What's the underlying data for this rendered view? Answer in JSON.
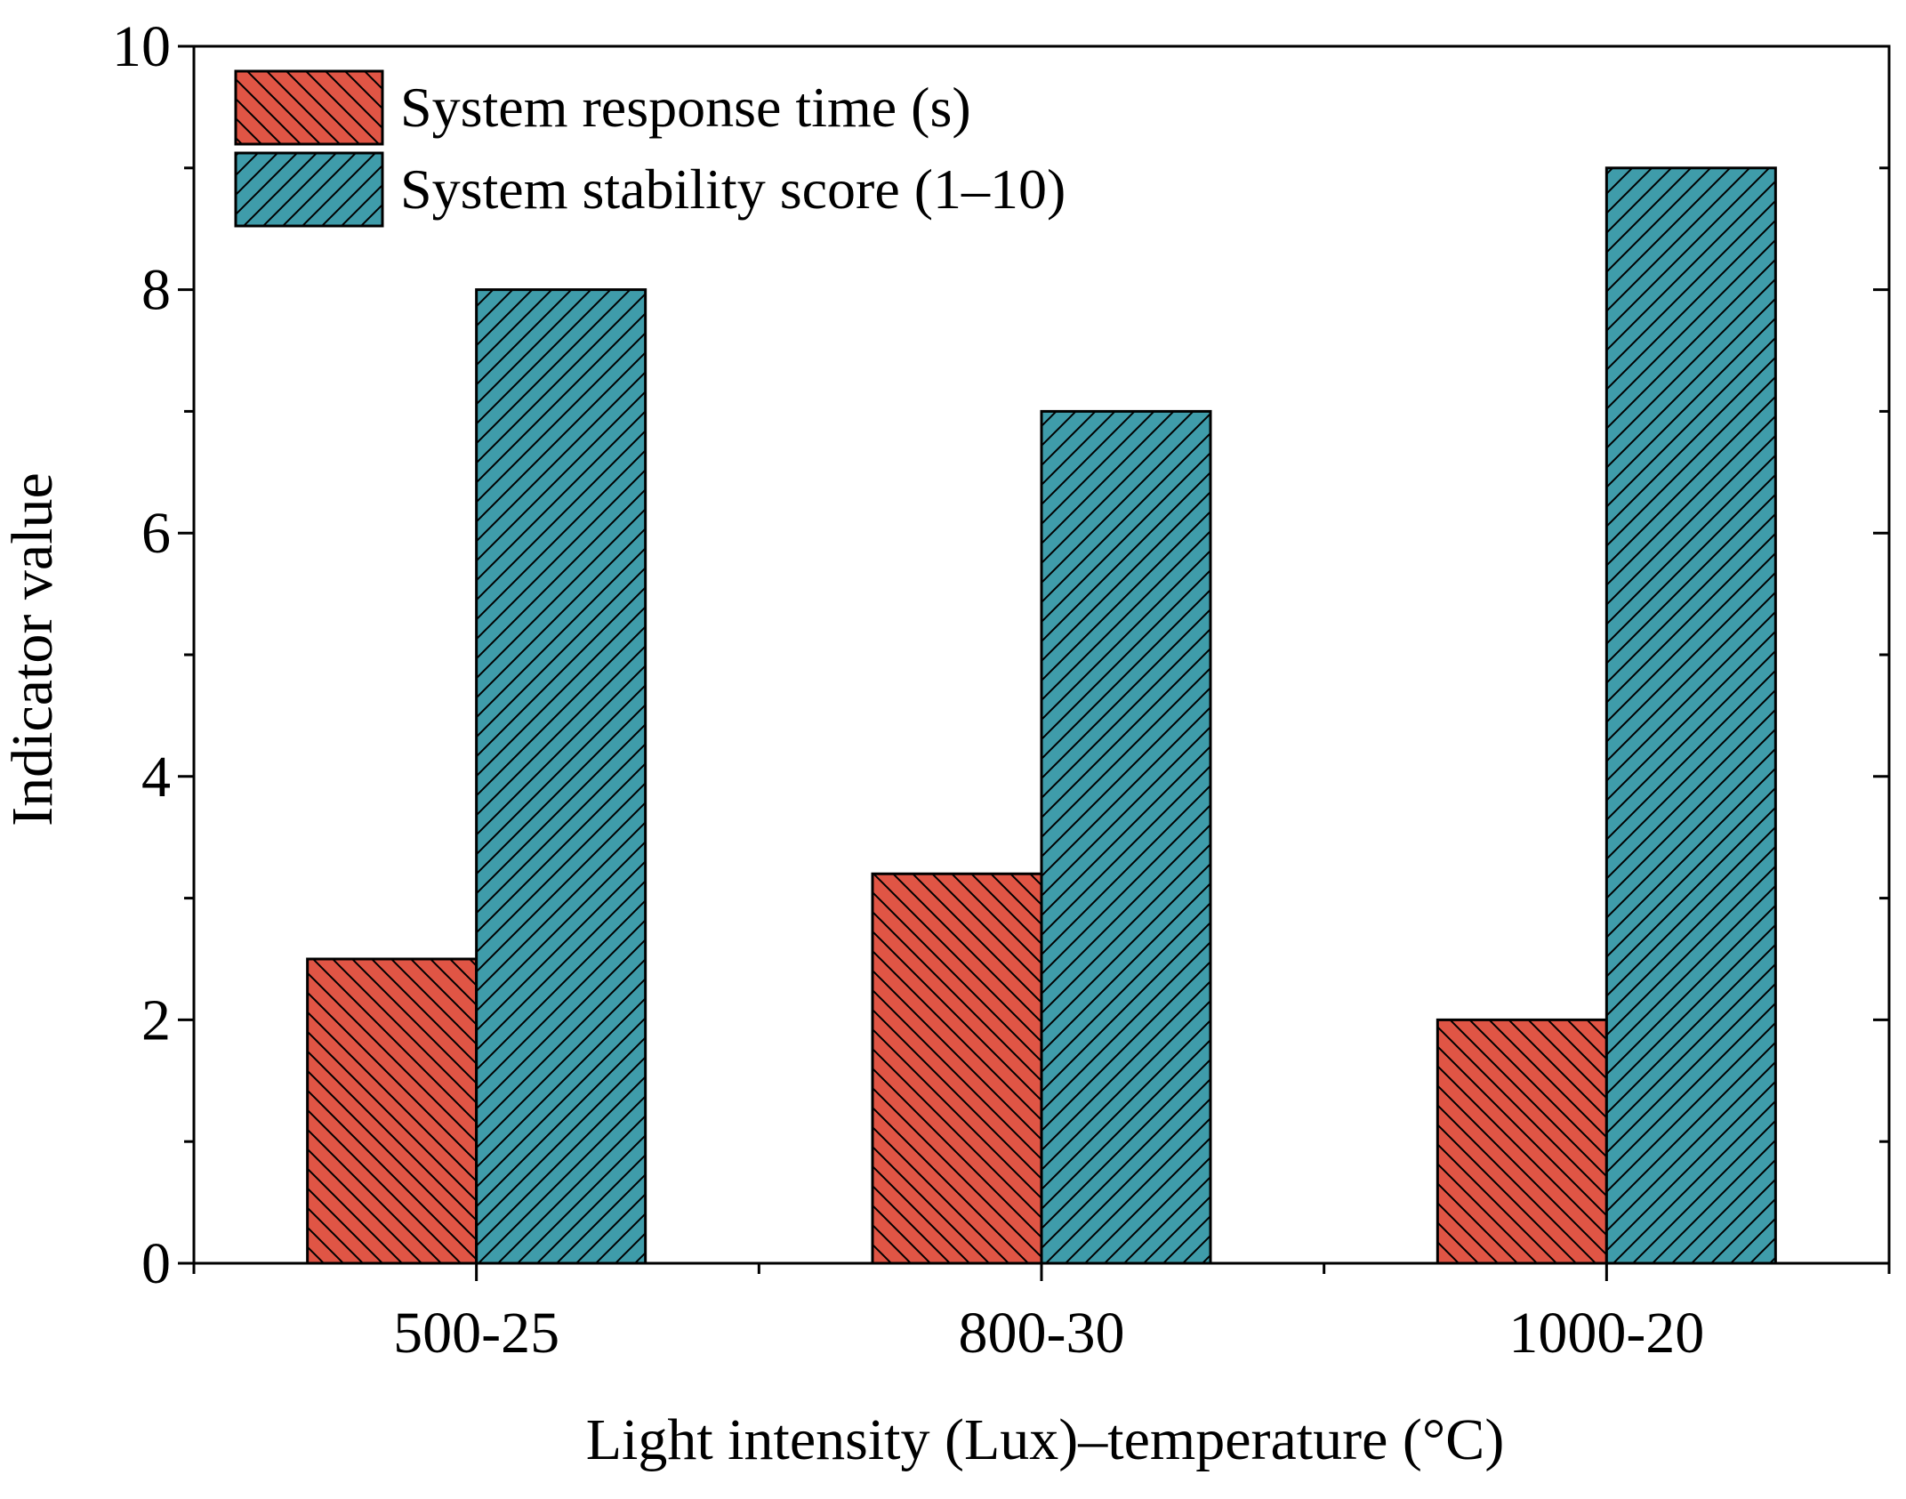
{
  "chart_data": {
    "type": "bar",
    "title": "",
    "xlabel": "Light intensity (Lux)–temperature (°C)",
    "ylabel": "Indicator value",
    "categories": [
      "500-25",
      "800-30",
      "1000-20"
    ],
    "series": [
      {
        "name": "System response time (s)",
        "values": [
          2.5,
          3.2,
          2.0
        ],
        "color": "#e05545",
        "hatch": "backslash"
      },
      {
        "name": "System stability score (1–10)",
        "values": [
          8,
          7,
          9
        ],
        "color": "#3f9caa",
        "hatch": "slash"
      }
    ],
    "ylim": [
      0,
      10
    ],
    "yticks": [
      0,
      2,
      4,
      6,
      8,
      10
    ],
    "grid": false,
    "legend_position": "top-left"
  }
}
